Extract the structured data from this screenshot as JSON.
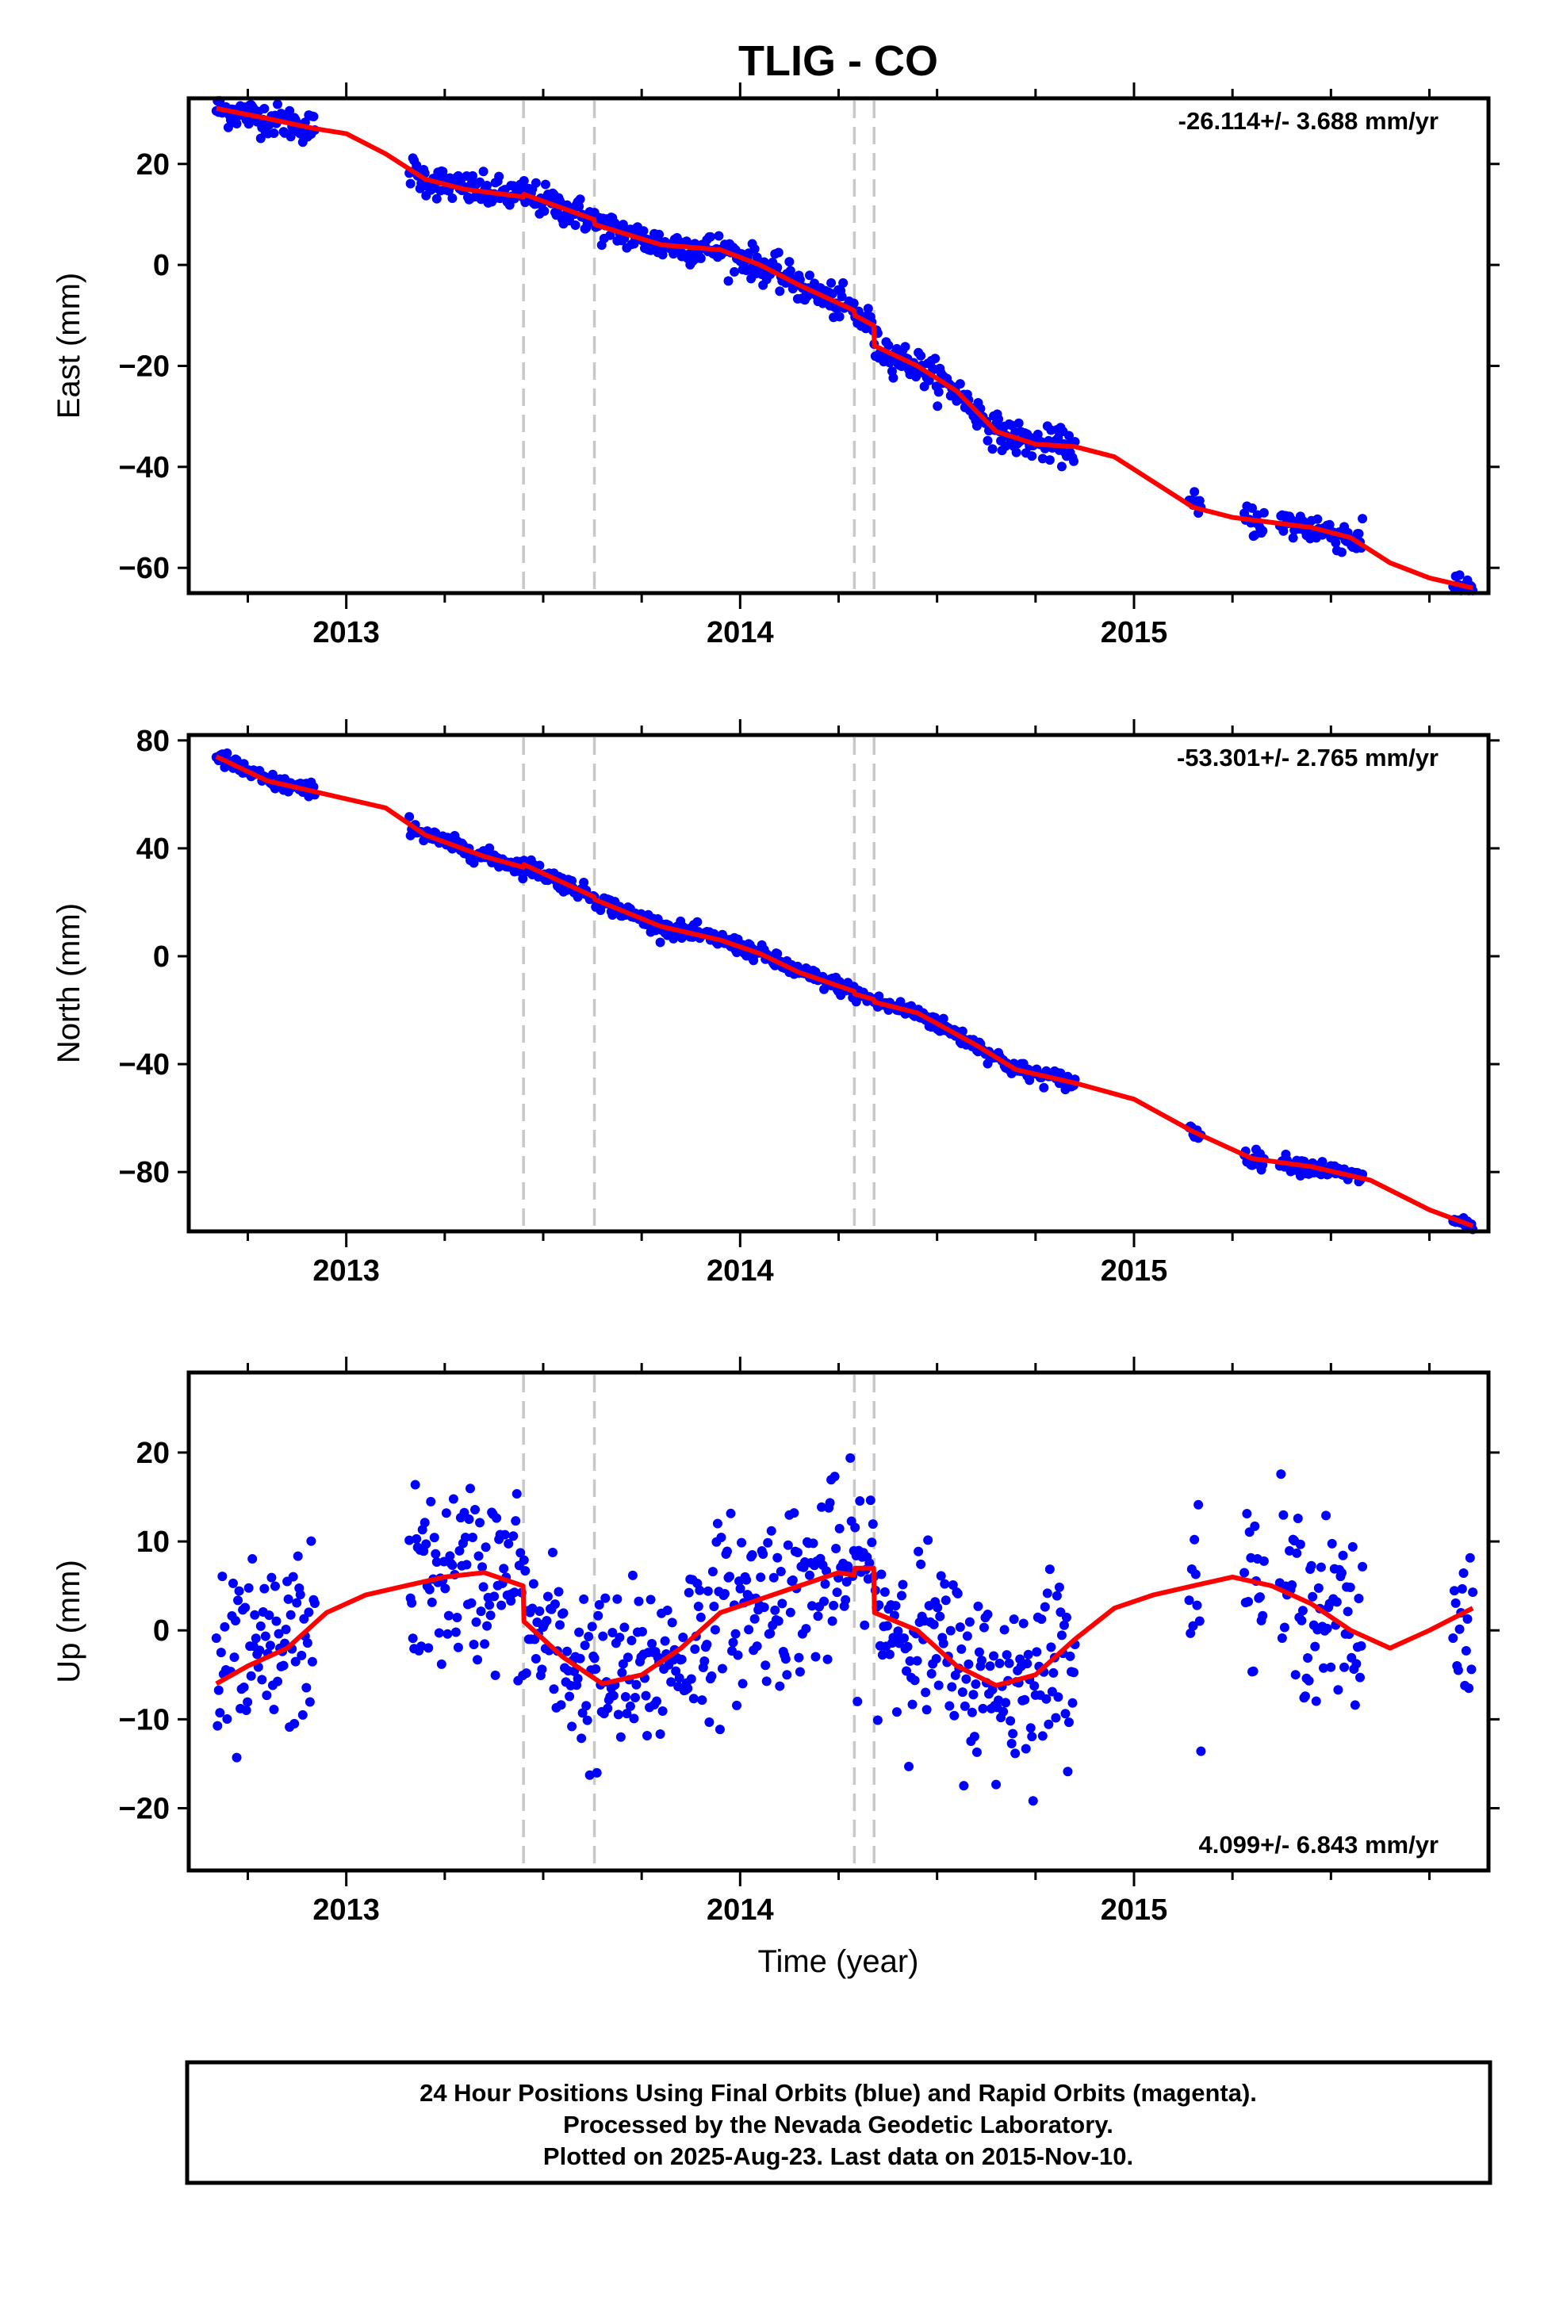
{
  "title": "TLIG - CO",
  "time_label": "Time (year)",
  "footer": {
    "line1": "24 Hour Positions Using Final Orbits (blue) and Rapid Orbits (magenta).",
    "line2": "Processed by the Nevada Geodetic Laboratory.",
    "line3": "Plotted on 2025-Aug-23. Last data on 2015-Nov-10."
  },
  "colors": {
    "points": "#0000ff",
    "model": "#ff0000",
    "steps": "#c8c8c8",
    "frame": "#000000"
  },
  "chart_data": [
    {
      "type": "scatter",
      "ylabel": "East (mm)",
      "rate_text": "-26.114+/- 3.688 mm/yr",
      "xlim": [
        2012.6,
        2015.9
      ],
      "ylim": [
        -65,
        33
      ],
      "yticks": [
        20,
        0,
        -20,
        -40,
        -60
      ],
      "yticklabels": [
        "20",
        "0",
        "−20",
        "−40",
        "−60"
      ],
      "xticks": [
        2013,
        2014,
        2015
      ],
      "xticklabels": [
        "2013",
        "2014",
        "2015"
      ],
      "step_epochs": [
        2013.45,
        2013.63,
        2014.29,
        2014.34
      ],
      "data_segments": [
        [
          2012.67,
          2012.92
        ],
        [
          2013.16,
          2014.85
        ],
        [
          2015.14,
          2015.17
        ],
        [
          2015.28,
          2015.33
        ],
        [
          2015.37,
          2015.58
        ],
        [
          2015.81,
          2015.86
        ]
      ],
      "noise_mm": 1.6,
      "model": {
        "x": [
          2012.67,
          2012.8,
          2012.92,
          2013.0,
          2013.1,
          2013.2,
          2013.3,
          2013.449,
          2013.451,
          2013.629,
          2013.631,
          2013.8,
          2013.95,
          2014.05,
          2014.15,
          2014.289,
          2014.291,
          2014.339,
          2014.341,
          2014.45,
          2014.55,
          2014.65,
          2014.75,
          2014.85,
          2014.95,
          2015.05,
          2015.15,
          2015.25,
          2015.35,
          2015.45,
          2015.55,
          2015.65,
          2015.75,
          2015.86
        ],
        "y": [
          31,
          29,
          27,
          26,
          22,
          17,
          15,
          13.5,
          14,
          9,
          8,
          4,
          3,
          0,
          -4,
          -9,
          -10,
          -12,
          -16,
          -20,
          -25,
          -33,
          -35.5,
          -36,
          -38,
          -43,
          -48,
          -50,
          -51,
          -52,
          -54,
          -59,
          -62,
          -64
        ]
      }
    },
    {
      "type": "scatter",
      "ylabel": "North (mm)",
      "rate_text": "-53.301+/- 2.765 mm/yr",
      "xlim": [
        2012.6,
        2015.9
      ],
      "ylim": [
        -102,
        82
      ],
      "yticks": [
        80,
        40,
        0,
        -40,
        -80
      ],
      "yticklabels": [
        "80",
        "40",
        "0",
        "−40",
        "−80"
      ],
      "xticks": [
        2013,
        2014,
        2015
      ],
      "xticklabels": [
        "2013",
        "2014",
        "2015"
      ],
      "step_epochs": [
        2013.45,
        2013.63,
        2014.29,
        2014.34
      ],
      "data_segments": [
        [
          2012.67,
          2012.92
        ],
        [
          2013.16,
          2014.85
        ],
        [
          2015.14,
          2015.17
        ],
        [
          2015.28,
          2015.33
        ],
        [
          2015.37,
          2015.58
        ],
        [
          2015.81,
          2015.86
        ]
      ],
      "noise_mm": 1.5,
      "model": {
        "x": [
          2012.67,
          2012.8,
          2012.92,
          2013.1,
          2013.2,
          2013.35,
          2013.449,
          2013.451,
          2013.629,
          2013.631,
          2013.8,
          2013.95,
          2014.05,
          2014.15,
          2014.289,
          2014.291,
          2014.339,
          2014.341,
          2014.45,
          2014.6,
          2014.7,
          2014.85,
          2015.0,
          2015.15,
          2015.3,
          2015.45,
          2015.6,
          2015.75,
          2015.86
        ],
        "y": [
          74,
          65,
          61,
          55,
          45,
          37,
          33,
          34,
          22,
          21,
          11,
          6,
          1,
          -6,
          -13,
          -14,
          -16,
          -17,
          -21,
          -33,
          -42,
          -47,
          -53,
          -65,
          -75,
          -78,
          -83,
          -94,
          -100
        ]
      }
    },
    {
      "type": "scatter",
      "ylabel": "Up (mm)",
      "rate_text": "4.099+/- 6.843 mm/yr",
      "xlim": [
        2012.6,
        2015.9
      ],
      "ylim": [
        -27,
        29
      ],
      "yticks": [
        20,
        10,
        0,
        -10,
        -20
      ],
      "yticklabels": [
        "20",
        "10",
        "0",
        "−10",
        "−20"
      ],
      "xticks": [
        2013,
        2014,
        2015
      ],
      "xticklabels": [
        "2013",
        "2014",
        "2015"
      ],
      "step_epochs": [
        2013.45,
        2013.63,
        2014.29,
        2014.34
      ],
      "data_segments": [
        [
          2012.67,
          2012.92
        ],
        [
          2013.16,
          2014.85
        ],
        [
          2015.14,
          2015.17
        ],
        [
          2015.28,
          2015.33
        ],
        [
          2015.37,
          2015.58
        ],
        [
          2015.81,
          2015.86
        ]
      ],
      "noise_mm": 5,
      "model": {
        "x": [
          2012.67,
          2012.75,
          2012.85,
          2012.95,
          2013.05,
          2013.15,
          2013.25,
          2013.35,
          2013.449,
          2013.451,
          2013.55,
          2013.65,
          2013.75,
          2013.85,
          2013.95,
          2014.05,
          2014.15,
          2014.25,
          2014.289,
          2014.291,
          2014.339,
          2014.341,
          2014.45,
          2014.55,
          2014.65,
          2014.75,
          2014.85,
          2014.95,
          2015.05,
          2015.15,
          2015.25,
          2015.35,
          2015.45,
          2015.55,
          2015.65,
          2015.75,
          2015.86
        ],
        "y": [
          -6,
          -4,
          -2,
          2,
          4,
          5,
          6,
          6.5,
          5,
          1,
          -3,
          -6,
          -5,
          -2,
          2,
          3.5,
          5,
          6.5,
          6.2,
          7,
          7,
          2,
          0,
          -4,
          -6.2,
          -5,
          -1,
          2.5,
          4,
          5,
          6,
          5,
          3,
          0,
          -2,
          0,
          2.5
        ]
      }
    }
  ]
}
